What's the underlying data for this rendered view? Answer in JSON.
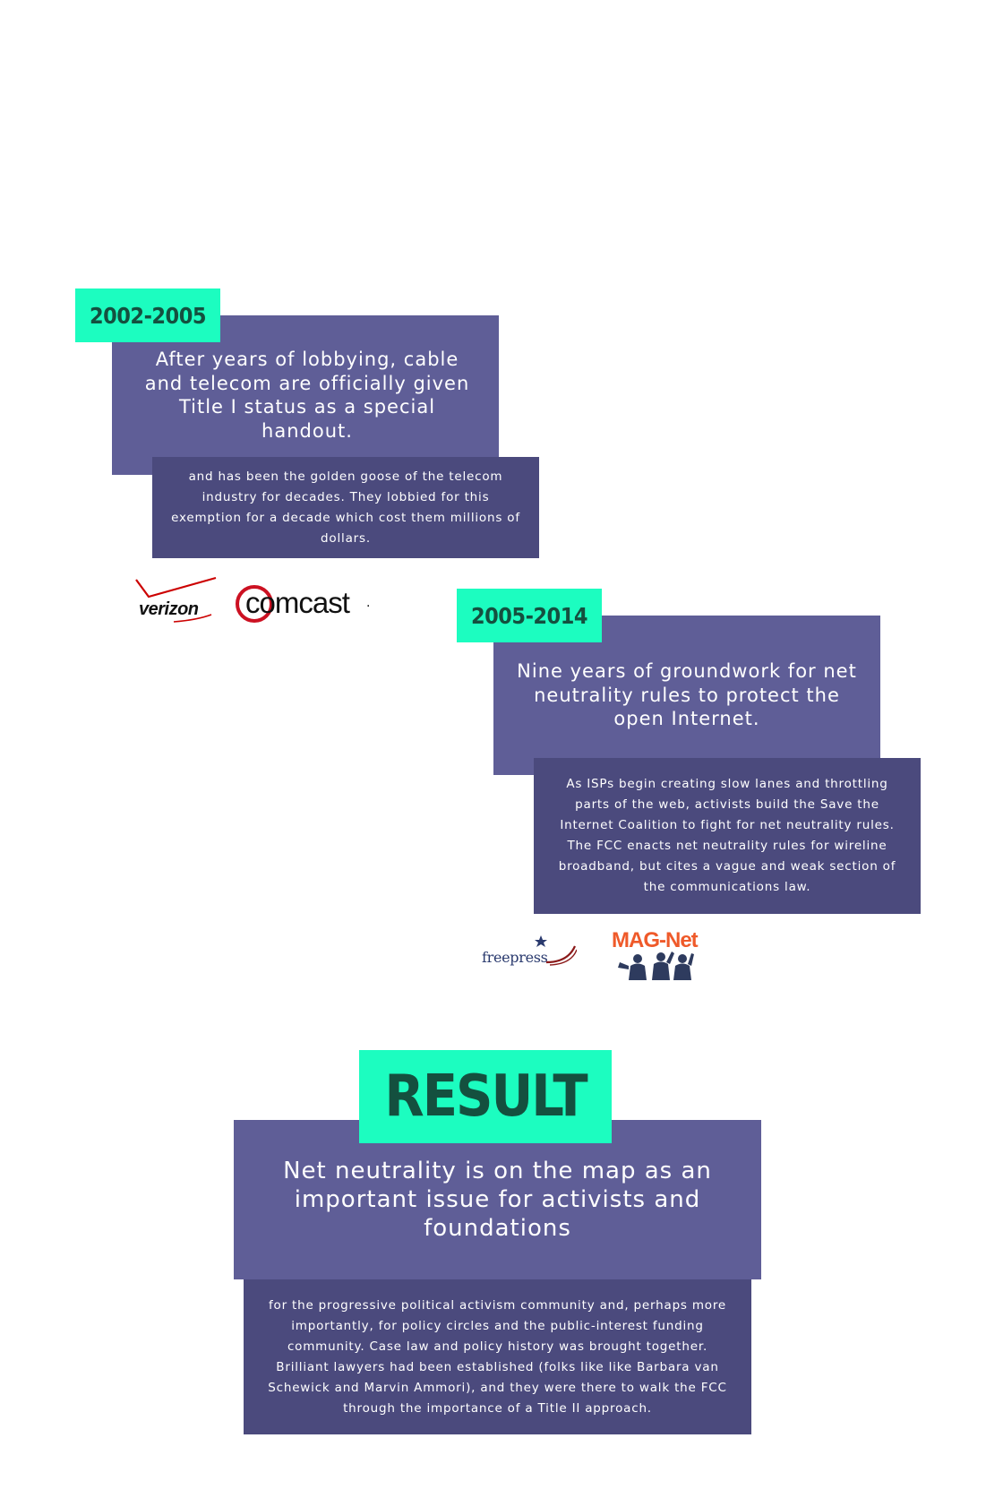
{
  "period1": {
    "tag": "2002-2005",
    "headline": "After years of lobbying, cable and telecom are officially given Title I status as a special handout.",
    "detail": "and has been the golden goose of the telecom industry for decades. They lobbied for this exemption for a decade which cost them millions of dollars.",
    "logos": {
      "verizon": "verizon",
      "comcast": "comcast",
      "comcast_mark": "."
    }
  },
  "period2": {
    "tag": "2005-2014",
    "headline": "Nine years of groundwork for net neutrality rules to protect the open Internet.",
    "detail": "As ISPs begin creating slow lanes and throttling parts of the web, activists build the Save the Internet Coalition to fight for net neutrality rules. The FCC enacts net neutrality rules for wireline broadband, but cites a vague and weak section of the communications law.",
    "logos": {
      "freepress": "freepress",
      "magnet": "MAG-Net"
    }
  },
  "result": {
    "tag": "RESULT",
    "headline": "Net neutrality is on the map as an important issue for activists and foundations",
    "detail": "for the progressive political activism community and, perhaps more importantly, for policy circles and the public-interest funding community. Case law and policy history was brought together. Brilliant lawyers had been established (folks like like Barbara van Schewick and Marvin Ammori), and they were there to walk the FCC through the importance of a Title II approach."
  },
  "colors": {
    "tag_bg": "#1cfdc0",
    "tag_text": "#14503f",
    "headline_bg": "#5f5e97",
    "detail_bg": "#4b4a7d",
    "verizon_red": "#cc0000",
    "freepress_blue": "#2a3a6e",
    "magnet_orange": "#ef5a2a",
    "magnet_navy": "#2e3b5e"
  }
}
